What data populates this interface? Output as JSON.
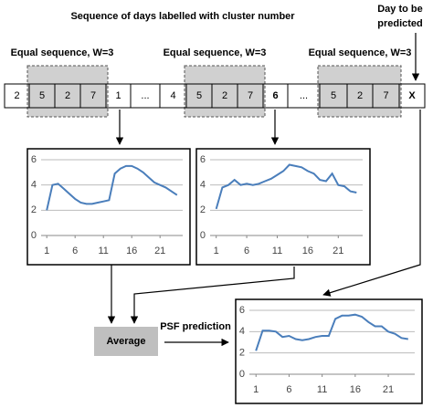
{
  "title": "Sequence of days labelled with cluster number",
  "predict_label": [
    "Day to be",
    "predicted"
  ],
  "window_labels": [
    "Equal sequence, W=3",
    "Equal sequence, W=3",
    "Equal sequence, W=3"
  ],
  "sequence": [
    "2",
    "5",
    "2",
    "7",
    "1",
    "...",
    "4",
    "5",
    "2",
    "7",
    "6",
    "...",
    "5",
    "2",
    "7",
    "X"
  ],
  "charts": [
    {
      "type": "line",
      "color": "#4a7ebb",
      "grid": true,
      "xlim": [
        0,
        25
      ],
      "xticks": [
        1,
        6,
        11,
        16,
        21
      ],
      "ylim": [
        0,
        6
      ],
      "yticks": [
        0,
        2,
        4,
        6
      ],
      "x": [
        1,
        2,
        3,
        4,
        5,
        6,
        7,
        8,
        9,
        10,
        11,
        12,
        13,
        14,
        15,
        16,
        17,
        18,
        19,
        20,
        21,
        22,
        23,
        24
      ],
      "values": [
        2.0,
        4.0,
        4.1,
        3.7,
        3.3,
        2.9,
        2.6,
        2.5,
        2.5,
        2.6,
        2.7,
        2.8,
        4.9,
        5.3,
        5.5,
        5.5,
        5.3,
        5.0,
        4.6,
        4.2,
        4.0,
        3.8,
        3.5,
        3.2
      ]
    },
    {
      "type": "line",
      "color": "#4a7ebb",
      "grid": true,
      "xlim": [
        0,
        25
      ],
      "xticks": [
        1,
        6,
        11,
        16,
        21
      ],
      "ylim": [
        0,
        6
      ],
      "yticks": [
        0,
        2,
        4,
        6
      ],
      "x": [
        1,
        2,
        3,
        4,
        5,
        6,
        7,
        8,
        9,
        10,
        11,
        12,
        13,
        14,
        15,
        16,
        17,
        18,
        19,
        20,
        21,
        22,
        23,
        24
      ],
      "values": [
        2.1,
        3.8,
        4.0,
        4.4,
        4.0,
        4.1,
        4.0,
        4.1,
        4.3,
        4.5,
        4.8,
        5.1,
        5.6,
        5.5,
        5.4,
        5.1,
        4.9,
        4.4,
        4.3,
        4.9,
        4.0,
        3.9,
        3.5,
        3.4
      ]
    },
    {
      "type": "line",
      "color": "#4a7ebb",
      "grid": true,
      "xlim": [
        0,
        25
      ],
      "xticks": [
        1,
        6,
        11,
        16,
        21
      ],
      "ylim": [
        0,
        6
      ],
      "yticks": [
        0,
        2,
        4,
        6
      ],
      "x": [
        1,
        2,
        3,
        4,
        5,
        6,
        7,
        8,
        9,
        10,
        11,
        12,
        13,
        14,
        15,
        16,
        17,
        18,
        19,
        20,
        21,
        22,
        23,
        24
      ],
      "values": [
        2.2,
        4.1,
        4.1,
        4.0,
        3.5,
        3.6,
        3.3,
        3.2,
        3.3,
        3.5,
        3.6,
        3.6,
        5.2,
        5.5,
        5.5,
        5.6,
        5.4,
        4.9,
        4.5,
        4.5,
        4.0,
        3.8,
        3.4,
        3.3
      ]
    }
  ],
  "average_label": "Average",
  "prediction_label": "PSF prediction"
}
